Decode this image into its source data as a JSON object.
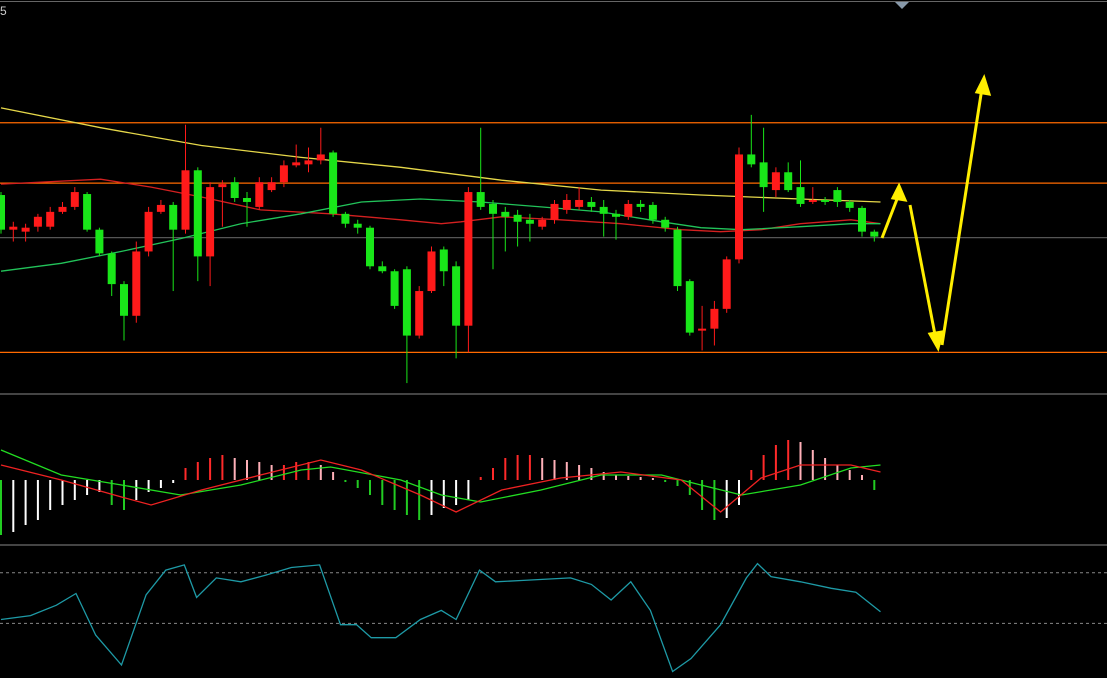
{
  "chart_data": [
    {
      "type": "candlestick",
      "label": "5",
      "ylim": [
        8,
        400
      ],
      "up_color": "#ff1a1a",
      "down_color": "#19e619",
      "open": [
        207,
        172,
        170,
        175,
        175,
        190,
        195,
        208,
        172,
        148,
        117,
        85,
        150,
        190,
        197,
        172,
        232,
        145,
        215,
        220,
        204,
        195,
        212,
        220,
        237,
        238,
        242,
        250,
        188,
        178,
        174,
        135,
        130,
        132,
        65,
        110,
        152,
        135,
        75,
        210,
        198,
        190,
        187,
        182,
        175,
        182,
        192,
        195,
        200,
        195,
        188,
        185,
        198,
        197,
        182,
        172,
        120,
        70,
        72,
        92,
        142,
        248,
        240,
        212,
        230,
        215,
        200,
        202,
        212,
        200,
        194,
        170
      ],
      "high": [
        210,
        180,
        178,
        188,
        195,
        200,
        215,
        210,
        174,
        150,
        120,
        160,
        195,
        202,
        200,
        278,
        235,
        220,
        222,
        225,
        210,
        225,
        225,
        242,
        258,
        255,
        275,
        252,
        190,
        182,
        176,
        140,
        132,
        135,
        115,
        155,
        155,
        140,
        215,
        275,
        202,
        195,
        192,
        188,
        185,
        202,
        208,
        215,
        205,
        202,
        192,
        202,
        202,
        200,
        185,
        175,
        122,
        95,
        100,
        145,
        255,
        288,
        275,
        235,
        240,
        242,
        215,
        205,
        215,
        202,
        196,
        172
      ],
      "low": [
        168,
        160,
        160,
        170,
        172,
        188,
        192,
        170,
        145,
        105,
        60,
        78,
        145,
        188,
        110,
        168,
        120,
        115,
        175,
        200,
        175,
        192,
        210,
        215,
        235,
        230,
        238,
        185,
        174,
        168,
        132,
        128,
        92,
        17,
        62,
        108,
        115,
        42,
        48,
        192,
        132,
        150,
        155,
        160,
        172,
        178,
        188,
        192,
        190,
        165,
        162,
        182,
        190,
        178,
        170,
        110,
        65,
        50,
        55,
        88,
        138,
        235,
        190,
        205,
        210,
        195,
        198,
        197,
        195,
        190,
        165,
        160
      ],
      "close": [
        172,
        175,
        174,
        185,
        190,
        195,
        210,
        172,
        148,
        117,
        85,
        150,
        190,
        197,
        172,
        232,
        145,
        215,
        218,
        204,
        200,
        220,
        220,
        237,
        240,
        242,
        248,
        188,
        178,
        174,
        135,
        130,
        95,
        65,
        110,
        150,
        130,
        75,
        210,
        195,
        188,
        185,
        180,
        178,
        182,
        198,
        202,
        202,
        195,
        188,
        185,
        198,
        195,
        182,
        174,
        115,
        68,
        72,
        92,
        142,
        248,
        238,
        215,
        230,
        212,
        198,
        202,
        200,
        200,
        194,
        170,
        165
      ],
      "lines": [
        {
          "color": "#e6d84a",
          "x": [
            0,
            8.1,
            16.3,
            24.4,
            32.5,
            40.7,
            48.8,
            56.9,
            65,
            71.5
          ],
          "values": [
            295,
            275,
            257,
            245,
            235,
            222,
            212,
            207,
            203,
            200
          ]
        },
        {
          "color": "#d42020",
          "x": [
            0,
            8.1,
            12.2,
            16.3,
            21.1,
            26.8,
            32.5,
            35.8,
            37.4,
            40.7,
            45.5,
            50.4,
            55.3,
            58.5,
            61.8,
            65,
            69.1,
            71.5
          ],
          "values": [
            218,
            223,
            215,
            205,
            192,
            188,
            182,
            178,
            180,
            185,
            182,
            178,
            172,
            170,
            172,
            178,
            182,
            178
          ]
        },
        {
          "color": "#22c35a",
          "x": [
            0,
            4.9,
            9.8,
            14.6,
            19.5,
            24.4,
            29.3,
            34.1,
            39,
            43.9,
            48.8,
            53.7,
            56.9,
            60.2,
            65,
            69.1,
            71.5
          ],
          "values": [
            130,
            138,
            150,
            163,
            178,
            188,
            200,
            203,
            200,
            195,
            190,
            180,
            174,
            172,
            175,
            178,
            178
          ]
        }
      ],
      "hlines": [
        {
          "color": "#ff6a00",
          "values": [
            280,
            219,
            48
          ]
        },
        {
          "color": "#555555",
          "values": [
            164
          ]
        }
      ]
    },
    {
      "type": "macd",
      "ylim": [
        -65,
        83
      ],
      "histogram": [
        -55,
        -52,
        -45,
        -40,
        -30,
        -25,
        -20,
        -15,
        -12,
        -25,
        -30,
        -20,
        -12,
        -8,
        -3,
        12,
        18,
        22,
        25,
        22,
        20,
        18,
        15,
        15,
        18,
        18,
        15,
        8,
        -2,
        -8,
        -15,
        -25,
        -30,
        -35,
        -40,
        -35,
        -28,
        -25,
        -20,
        3,
        12,
        22,
        25,
        25,
        22,
        20,
        18,
        15,
        12,
        8,
        5,
        4,
        3,
        2,
        -2,
        -6,
        -15,
        -30,
        -40,
        -38,
        -25,
        10,
        25,
        35,
        40,
        38,
        30,
        22,
        15,
        10,
        5,
        -10
      ],
      "lines": [
        {
          "color": "#22dd22",
          "x": [
            0,
            4.9,
            9.8,
            14.6,
            19.5,
            24.4,
            26.8,
            32.5,
            35.8,
            39,
            43.9,
            48.8,
            53.7,
            56.9,
            60.2,
            65,
            69.1,
            71.5
          ],
          "values": [
            30,
            5,
            -5,
            -15,
            -5,
            10,
            13,
            0,
            -15,
            -22,
            -10,
            5,
            5,
            -5,
            -15,
            -5,
            12,
            15
          ]
        },
        {
          "color": "#ee2222",
          "x": [
            0,
            4.9,
            9.8,
            12.2,
            16.3,
            21.1,
            26,
            29.3,
            34.1,
            37,
            40.7,
            45.5,
            50.4,
            55.3,
            58.5,
            61.8,
            65,
            69.1,
            71.5
          ],
          "values": [
            15,
            0,
            -17,
            -25,
            -10,
            5,
            20,
            10,
            -15,
            -32,
            -10,
            2,
            8,
            0,
            -32,
            2,
            15,
            15,
            8
          ]
        }
      ]
    },
    {
      "type": "line",
      "ylim": [
        0,
        100
      ],
      "levels": [
        81,
        42
      ],
      "lines": [
        {
          "color": "#1e9aa6",
          "x": [
            0,
            2.4,
            4.5,
            6.1,
            7.7,
            9.8,
            11.8,
            13.4,
            14.9,
            15.9,
            17.5,
            19.5,
            21.5,
            23.6,
            25.9,
            27.6,
            28.9,
            30.1,
            32.1,
            34.1,
            35.8,
            37,
            38.9,
            40.2,
            42.3,
            46.3,
            48,
            49.6,
            51.2,
            52.8,
            54.6,
            56.1,
            58.5,
            60.6,
            61.5,
            62.6,
            65,
            67.5,
            69.5,
            71.5
          ],
          "values": [
            45,
            48,
            56,
            65,
            33,
            10,
            64,
            83,
            87,
            62,
            77,
            74,
            79,
            85,
            87,
            41,
            41,
            31,
            31,
            45,
            52,
            45,
            83,
            74,
            75,
            77,
            72,
            60,
            74,
            52,
            5,
            15,
            41,
            77,
            88,
            78,
            74,
            69,
            66,
            51
          ]
        }
      ]
    }
  ]
}
